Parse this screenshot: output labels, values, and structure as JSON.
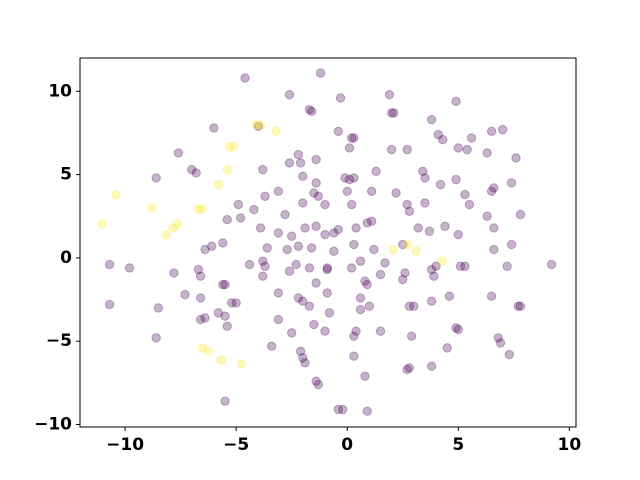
{
  "chart_data": {
    "type": "scatter",
    "xlim": [
      -12.03,
      10.3
    ],
    "ylim": [
      -10.15,
      12.0
    ],
    "xticks": [
      {
        "value": -10,
        "label": "−10"
      },
      {
        "value": -5,
        "label": "−5"
      },
      0,
      5,
      10
    ],
    "yticks": [
      {
        "value": -10,
        "label": "−10"
      },
      {
        "value": -5,
        "label": "−5"
      },
      0,
      5,
      10
    ],
    "grid": false,
    "alpha": 0.3,
    "series": [
      {
        "color": "#440154",
        "x": [
          -4.6,
          -1.2,
          -2.6,
          -1.7,
          -1.6,
          -0.3,
          1.9,
          2.0,
          2.1,
          4.9,
          -6.0,
          -4.0,
          -0.4,
          0.2,
          0.3,
          3.8,
          4.1,
          4.3,
          6.5,
          -7.6,
          -2.2,
          -1.4,
          0.1,
          2.0,
          2.7,
          5.0,
          5.4,
          5.6,
          6.3,
          7.0,
          7.6,
          -8.6,
          -7.0,
          -6.8,
          -3.8,
          -2.6,
          -2.1,
          -2.0,
          -1.4,
          -0.1,
          0.1,
          0.3,
          1.3,
          3.4,
          3.5,
          4.2,
          4.9,
          6.5,
          7.4,
          6.6,
          -3.7,
          -3.1,
          -1.5,
          -1.3,
          0.0,
          1.1,
          2.2,
          2.7,
          3.5,
          5.3,
          5.5,
          6.3,
          7.8,
          -4.9,
          -4.2,
          -2.8,
          -2.0,
          -1.0,
          0.2,
          -5.4,
          -4.8,
          -3.9,
          -3.1,
          -2.5,
          -1.9,
          -1.4,
          -1.0,
          -0.6,
          -0.4,
          0.4,
          0.9,
          1.1,
          2.8,
          3.2,
          3.7,
          4.4,
          5.0,
          6.6,
          7.4,
          -6.1,
          -6.4,
          -5.6,
          -3.6,
          -2.7,
          -2.2,
          -1.6,
          -0.6,
          0.3,
          1.2,
          2.5,
          -4.4,
          -3.8,
          -3.7,
          -2.3,
          -1.7,
          -0.9,
          0.2,
          0.6,
          1.7,
          2.6,
          3.8,
          4.0,
          5.1,
          5.3,
          6.6,
          7.2,
          9.2,
          -10.7,
          -9.8,
          -7.8,
          -6.7,
          -6.6,
          -5.5,
          -5.6,
          -3.8,
          -2.6,
          -1.4,
          -0.9,
          0.8,
          1.5,
          2.5,
          3.9,
          -10.7,
          -8.5,
          -7.3,
          -6.6,
          -5.2,
          -5.0,
          -3.1,
          -2.2,
          -2.0,
          -0.9,
          0.6,
          0.9,
          2.8,
          3.0,
          3.8,
          4.6,
          6.5,
          7.8,
          -6.4,
          -5.8,
          -5.5,
          -3.1,
          -1.7,
          -0.8,
          0.6,
          1.0,
          -8.6,
          -6.6,
          -5.4,
          -2.5,
          -1.5,
          -1.0,
          0.4,
          0.3,
          1.5,
          2.9,
          4.9,
          5.0,
          6.8,
          6.9,
          -3.4,
          -2.1,
          -1.9,
          -2.0,
          0.3,
          0.8,
          2.7,
          2.8,
          3.8,
          4.5,
          7.3,
          -1.4,
          -1.3,
          -5.5,
          -0.4,
          -0.2,
          0.9,
          7.7
        ],
        "y": [
          10.8,
          11.1,
          9.8,
          8.9,
          8.8,
          9.6,
          9.8,
          8.7,
          8.7,
          9.4,
          7.8,
          7.9,
          7.6,
          7.2,
          7.2,
          8.3,
          7.4,
          7.1,
          7.6,
          6.3,
          6.2,
          5.9,
          6.6,
          6.5,
          6.5,
          6.6,
          6.5,
          7.2,
          6.3,
          7.7,
          6.0,
          4.8,
          5.3,
          5.1,
          5.3,
          5.7,
          5.7,
          4.9,
          4.5,
          4.8,
          4.7,
          4.8,
          5.2,
          5.2,
          4.8,
          4.4,
          4.7,
          4.0,
          4.5,
          4.2,
          3.7,
          4.0,
          3.9,
          3.7,
          4.0,
          4.0,
          3.9,
          3.2,
          3.3,
          3.8,
          3.2,
          2.5,
          2.6,
          3.2,
          2.9,
          2.6,
          3.3,
          3.2,
          3.2,
          2.3,
          2.4,
          1.8,
          1.5,
          1.3,
          1.8,
          1.9,
          1.4,
          1.5,
          1.7,
          1.8,
          2.1,
          2.2,
          2.8,
          1.8,
          1.6,
          1.9,
          1.4,
          1.8,
          0.8,
          0.7,
          0.5,
          0.9,
          0.6,
          0.5,
          0.7,
          0.6,
          0.4,
          0.8,
          0.5,
          0.8,
          -0.4,
          -0.2,
          -0.5,
          -0.4,
          -0.6,
          -0.6,
          -0.6,
          -0.2,
          -0.3,
          -0.9,
          -0.7,
          -0.5,
          -0.5,
          -0.5,
          0.5,
          -0.5,
          -0.4,
          -0.4,
          -0.6,
          -0.9,
          -0.7,
          -1.1,
          -1.6,
          -1.6,
          -1.1,
          -0.8,
          -1.5,
          -0.7,
          -1.4,
          -1.0,
          -1.3,
          -1.1,
          -2.8,
          -3.0,
          -2.2,
          -2.4,
          -2.7,
          -2.7,
          -2.1,
          -2.4,
          -2.6,
          -2.1,
          -2.4,
          -1.6,
          -2.9,
          -2.9,
          -2.6,
          -2.3,
          -2.3,
          -2.9,
          -3.6,
          -3.3,
          -3.5,
          -3.7,
          -2.9,
          -3.3,
          -3.1,
          -2.9,
          -4.8,
          -3.7,
          -4.1,
          -4.5,
          -4.0,
          -4.4,
          -4.4,
          -4.7,
          -4.4,
          -4.7,
          -4.2,
          -4.3,
          -4.8,
          -5.1,
          -5.3,
          -5.6,
          -6.3,
          -6.0,
          -5.9,
          -7.1,
          -6.7,
          -6.6,
          -6.5,
          -5.4,
          -5.8,
          -7.4,
          -7.6,
          -8.6,
          -9.1,
          -9.1,
          -9.2,
          -2.9
        ]
      },
      {
        "color": "#fde725",
        "x": [
          -11.04,
          -10.41,
          -8.78,
          -8.15,
          -7.84,
          -7.66,
          -6.71,
          -6.53,
          -5.8,
          -5.4,
          -5.3,
          -5.1,
          -4.1,
          -3.9,
          -3.2,
          -6.53,
          -6.26,
          -5.68,
          -4.77,
          2.07,
          2.7,
          3.1,
          4.28
        ],
        "y": [
          2.04,
          3.78,
          3.0,
          1.38,
          1.8,
          2.04,
          2.94,
          2.94,
          4.4,
          5.3,
          6.65,
          6.7,
          8.0,
          7.95,
          7.6,
          -5.4,
          -5.6,
          -6.13,
          -6.37,
          0.48,
          0.78,
          0.42,
          -0.18
        ]
      }
    ]
  }
}
